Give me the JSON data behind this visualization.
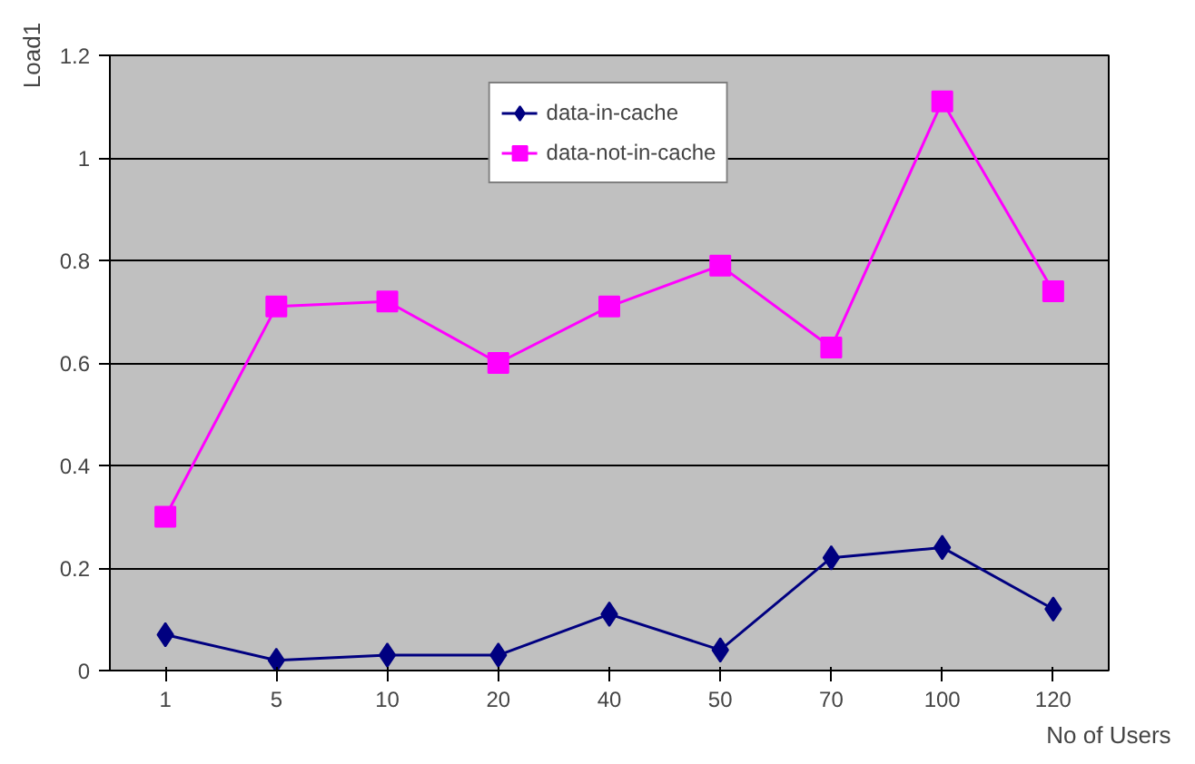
{
  "chart_data": {
    "type": "line",
    "xlabel": "No of Users",
    "ylabel": "Load1",
    "categories": [
      "1",
      "5",
      "10",
      "20",
      "40",
      "50",
      "70",
      "100",
      "120"
    ],
    "series": [
      {
        "name": "data-in-cache",
        "color": "#000080",
        "marker": "diamond",
        "values": [
          0.07,
          0.02,
          0.03,
          0.03,
          0.11,
          0.04,
          0.22,
          0.24,
          0.12
        ]
      },
      {
        "name": "data-not-in-cache",
        "color": "#ff00ff",
        "marker": "square",
        "values": [
          0.3,
          0.71,
          0.72,
          0.6,
          0.71,
          0.79,
          0.63,
          1.11,
          0.74
        ]
      }
    ],
    "ylim": [
      0,
      1.2
    ],
    "yticks": [
      0,
      0.2,
      0.4,
      0.6,
      0.8,
      1,
      1.2
    ],
    "grid": "y",
    "legend": "top"
  }
}
